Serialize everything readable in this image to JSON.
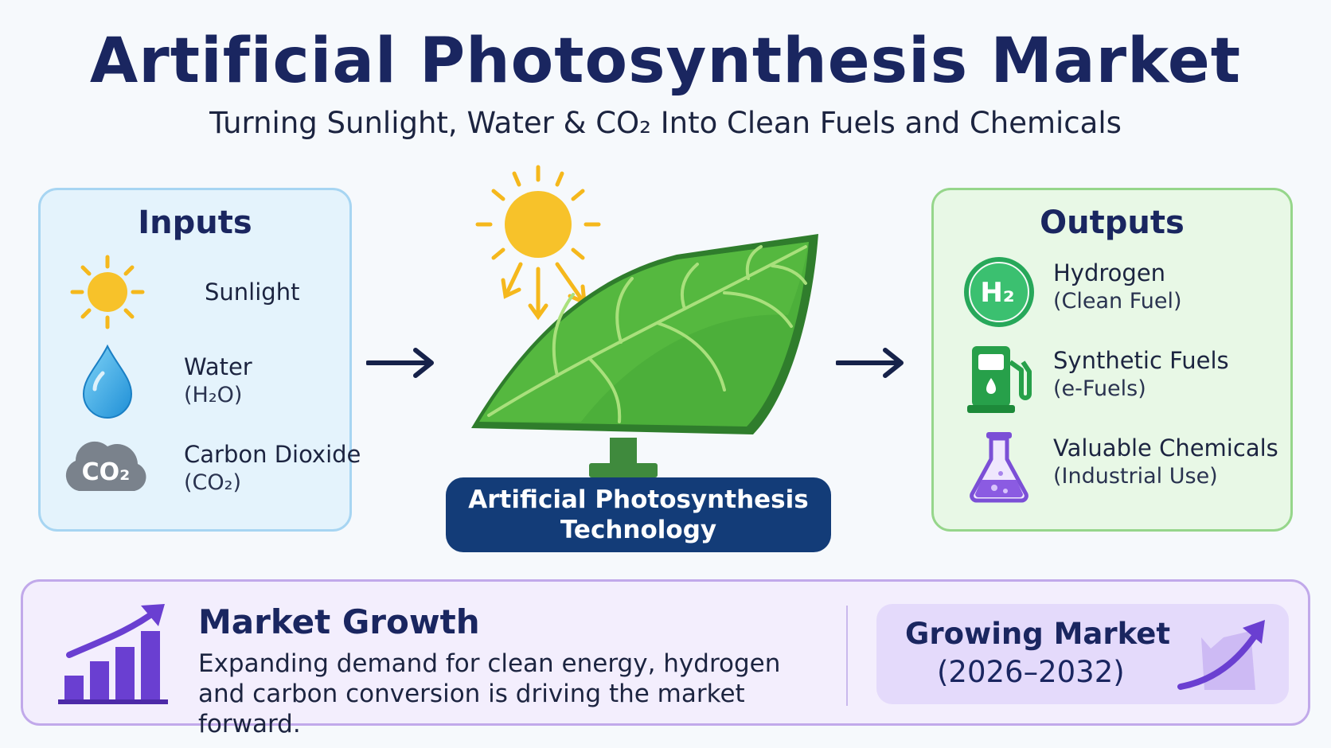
{
  "header": {
    "title": "Artificial Photosynthesis Market",
    "subtitle": "Turning Sunlight, Water & CO₂ Into Clean Fuels and Chemicals"
  },
  "inputs": {
    "title": "Inputs",
    "items": [
      {
        "label": "Sunlight",
        "sub": "",
        "icon": "sun-icon"
      },
      {
        "label": "Water",
        "sub": "(H₂O)",
        "icon": "water-drop-icon"
      },
      {
        "label": "Carbon Dioxide",
        "sub": "(CO₂)",
        "icon": "co2-cloud-icon",
        "icon_text": "CO₂"
      }
    ]
  },
  "center": {
    "label_line1": "Artificial Photosynthesis",
    "label_line2": "Technology",
    "icon": "solar-leaf-panel-icon"
  },
  "outputs": {
    "title": "Outputs",
    "items": [
      {
        "label": "Hydrogen",
        "sub": "(Clean Fuel)",
        "icon": "hydrogen-icon",
        "icon_text": "H₂"
      },
      {
        "label": "Synthetic Fuels",
        "sub": "(e-Fuels)",
        "icon": "fuel-pump-icon"
      },
      {
        "label": "Valuable Chemicals",
        "sub": "(Industrial Use)",
        "icon": "flask-icon"
      }
    ]
  },
  "market": {
    "title": "Market Growth",
    "description": "Expanding demand for clean energy, hydrogen and carbon conversion is driving the market forward.",
    "badge_title": "Growing Market",
    "badge_years": "(2026–2032)"
  },
  "colors": {
    "title": "#1a2660",
    "inputs_bg": "#e4f3fc",
    "outputs_bg": "#e8f8e6",
    "market_bg": "#f3eefd",
    "tech_label_bg": "#133c78",
    "leaf_green": "#4caf3a",
    "accent_purple": "#6a3fd1"
  }
}
